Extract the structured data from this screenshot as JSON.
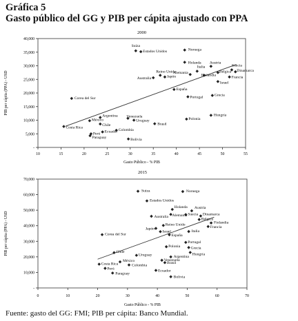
{
  "header": {
    "label": "Gráfica 5",
    "title": "Gasto público del GG y PIB per cápita ajustado con PPA"
  },
  "source": "Fuente: gasto del GG: FMI; PIB per cápita: Banco Mundial.",
  "chart_data": [
    {
      "type": "scatter",
      "title": "2000",
      "xlabel": "Gasto Público - % PIB",
      "ylabel": "PIB per cápita (PPA) - USD",
      "xlim": [
        10,
        55
      ],
      "ylim": [
        0,
        40000
      ],
      "xticks": [
        "10",
        "15",
        "20",
        "25",
        "30",
        "35",
        "40",
        "45",
        "50",
        "55"
      ],
      "yticks": [
        "-",
        "5,000",
        "10,000",
        "15,000",
        "20,000",
        "25,000",
        "30,000",
        "35,000",
        "40,000"
      ],
      "trendline": [
        [
          16,
          7800
        ],
        [
          53,
          30500
        ]
      ],
      "points": [
        {
          "label": "Suiza",
          "x": 31.2,
          "y": 35500
        },
        {
          "label": "Estados Unidos",
          "x": 32.3,
          "y": 35200
        },
        {
          "label": "Noruega",
          "x": 41.8,
          "y": 35800
        },
        {
          "label": "Holanda",
          "x": 41.8,
          "y": 31300
        },
        {
          "label": "Austria",
          "x": 47.5,
          "y": 29800
        },
        {
          "label": "Suecia",
          "x": 52.0,
          "y": 28500
        },
        {
          "label": "Dinamarca",
          "x": 52.8,
          "y": 27800
        },
        {
          "label": "Italia",
          "x": 44.5,
          "y": 28000
        },
        {
          "label": "Alemania",
          "x": 43.0,
          "y": 26800
        },
        {
          "label": "Finlandia",
          "x": 46.0,
          "y": 26500
        },
        {
          "label": "Bélgica",
          "x": 49.0,
          "y": 27500
        },
        {
          "label": "Reino Unido",
          "x": 36.5,
          "y": 26500
        },
        {
          "label": "Japón",
          "x": 37.5,
          "y": 25900
        },
        {
          "label": "Australia",
          "x": 35.0,
          "y": 25600
        },
        {
          "label": "Francia",
          "x": 51.5,
          "y": 25900
        },
        {
          "label": "Israel",
          "x": 49.0,
          "y": 24200
        },
        {
          "label": "España",
          "x": 39.5,
          "y": 21300
        },
        {
          "label": "Grecia",
          "x": 47.8,
          "y": 19100
        },
        {
          "label": "Portugal",
          "x": 42.5,
          "y": 18600
        },
        {
          "label": "Corea del Sur",
          "x": 17.3,
          "y": 18000
        },
        {
          "label": "Hungría",
          "x": 47.5,
          "y": 11800
        },
        {
          "label": "Polonia",
          "x": 42.2,
          "y": 10400
        },
        {
          "label": "Argentina",
          "x": 23.5,
          "y": 11000
        },
        {
          "label": "México",
          "x": 21.2,
          "y": 9800
        },
        {
          "label": "Venezuela",
          "x": 29.5,
          "y": 10700
        },
        {
          "label": "Uruguay",
          "x": 30.8,
          "y": 10000
        },
        {
          "label": "Chile",
          "x": 23.5,
          "y": 8600
        },
        {
          "label": "Brasil",
          "x": 35.3,
          "y": 8700
        },
        {
          "label": "Costa Rica",
          "x": 15.6,
          "y": 7700
        },
        {
          "label": "Colombia",
          "x": 27.0,
          "y": 6300
        },
        {
          "label": "Ecuador",
          "x": 24.0,
          "y": 5700
        },
        {
          "label": "Perú",
          "x": 21.5,
          "y": 5000
        },
        {
          "label": "Paraguay",
          "x": 21.3,
          "y": 4300
        },
        {
          "label": "Bolivia",
          "x": 29.6,
          "y": 3100
        }
      ]
    },
    {
      "type": "scatter",
      "title": "2015",
      "xlabel": "Gasto Público - % PIB",
      "ylabel": "PIB per cápita (PPA) - USD",
      "xlim": [
        0,
        70
      ],
      "ylim": [
        0,
        70000
      ],
      "xticks": [
        "0",
        "10",
        "20",
        "30",
        "40",
        "50",
        "60",
        "70"
      ],
      "yticks": [
        "-",
        "10,000",
        "20,000",
        "30,000",
        "40,000",
        "50,000",
        "60,000",
        "70,000"
      ],
      "trendline": [
        [
          20,
          18500
        ],
        [
          59,
          45500
        ]
      ],
      "points": [
        {
          "label": "Suiza",
          "x": 33.5,
          "y": 62200
        },
        {
          "label": "Noruega",
          "x": 48.5,
          "y": 62000
        },
        {
          "label": "Estados Unidos",
          "x": 36.5,
          "y": 56000
        },
        {
          "label": "Holanda",
          "x": 45.0,
          "y": 50500
        },
        {
          "label": "Austria",
          "x": 51.5,
          "y": 49600
        },
        {
          "label": "Alemania",
          "x": 44.5,
          "y": 47300
        },
        {
          "label": "Suecia",
          "x": 49.5,
          "y": 47200
        },
        {
          "label": "Dinamarca",
          "x": 54.5,
          "y": 46300
        },
        {
          "label": "Australia",
          "x": 38.0,
          "y": 46100
        },
        {
          "label": "Bélgica",
          "x": 54.0,
          "y": 44000
        },
        {
          "label": "Finlandia",
          "x": 58.0,
          "y": 41800
        },
        {
          "label": "Francia",
          "x": 57.0,
          "y": 39500
        },
        {
          "label": "Reino Unido",
          "x": 42.0,
          "y": 40200
        },
        {
          "label": "Japón",
          "x": 39.5,
          "y": 38300
        },
        {
          "label": "Israel",
          "x": 41.0,
          "y": 36200
        },
        {
          "label": "Italia",
          "x": 50.5,
          "y": 36300
        },
        {
          "label": "España",
          "x": 44.0,
          "y": 34200
        },
        {
          "label": "Corea del Sur",
          "x": 21.5,
          "y": 34300
        },
        {
          "label": "Portugal",
          "x": 49.5,
          "y": 29300
        },
        {
          "label": "Polonia",
          "x": 43.0,
          "y": 26500
        },
        {
          "label": "Grecia",
          "x": 50.5,
          "y": 26000
        },
        {
          "label": "Hungría",
          "x": 51.0,
          "y": 22800
        },
        {
          "label": "Chile",
          "x": 25.5,
          "y": 22700
        },
        {
          "label": "Uruguay",
          "x": 33.0,
          "y": 21000
        },
        {
          "label": "Argentina",
          "x": 44.5,
          "y": 20000
        },
        {
          "label": "Venezuela",
          "x": 41.5,
          "y": 17800
        },
        {
          "label": "Brasil",
          "x": 42.5,
          "y": 16300
        },
        {
          "label": "México",
          "x": 27.5,
          "y": 16800
        },
        {
          "label": "Colombia",
          "x": 30.5,
          "y": 14800
        },
        {
          "label": "Costa Rica",
          "x": 20.5,
          "y": 15300
        },
        {
          "label": "Perú",
          "x": 22.5,
          "y": 12600
        },
        {
          "label": "Ecuador",
          "x": 39.5,
          "y": 11300
        },
        {
          "label": "Paraguay",
          "x": 25.0,
          "y": 9600
        },
        {
          "label": "Bolivia",
          "x": 44.5,
          "y": 7200
        }
      ]
    }
  ]
}
